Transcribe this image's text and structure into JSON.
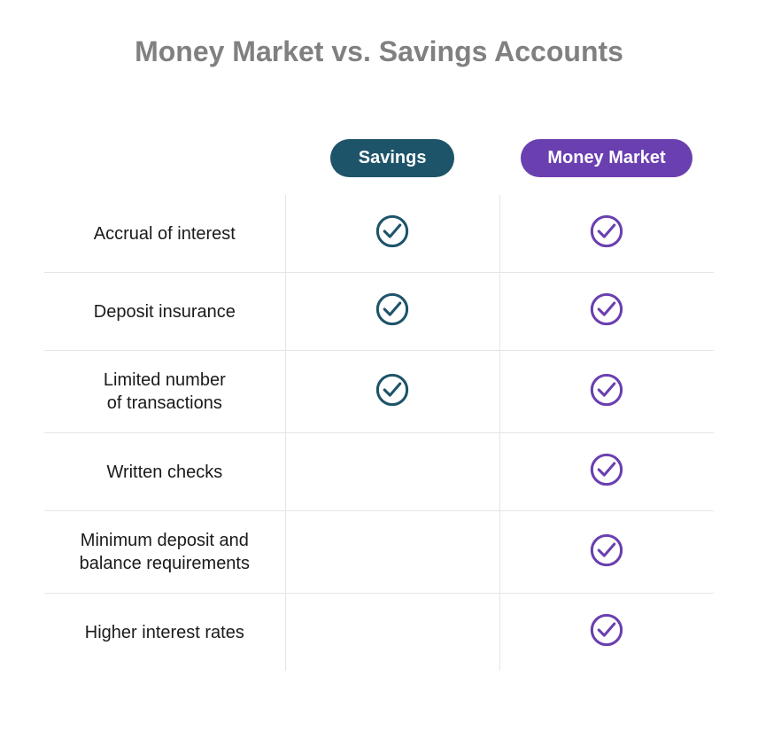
{
  "title": "Money Market vs. Savings Accounts",
  "title_color": "#808080",
  "text_color": "#1a1a1a",
  "divider_color": "#e5e5e5",
  "columns": [
    {
      "label": "Savings",
      "color": "#1d5469"
    },
    {
      "label": "Money Market",
      "color": "#6a3fb0"
    }
  ],
  "rows": [
    {
      "label": "Accrual of interest",
      "checks": [
        true,
        true
      ]
    },
    {
      "label": "Deposit insurance",
      "checks": [
        true,
        true
      ]
    },
    {
      "label": "Limited number\nof transactions",
      "checks": [
        true,
        true
      ]
    },
    {
      "label": "Written checks",
      "checks": [
        false,
        true
      ]
    },
    {
      "label": "Minimum deposit and\nbalance requirements",
      "checks": [
        false,
        true
      ]
    },
    {
      "label": "Higher interest rates",
      "checks": [
        false,
        true
      ]
    }
  ],
  "icon_stroke_width": 3.5
}
